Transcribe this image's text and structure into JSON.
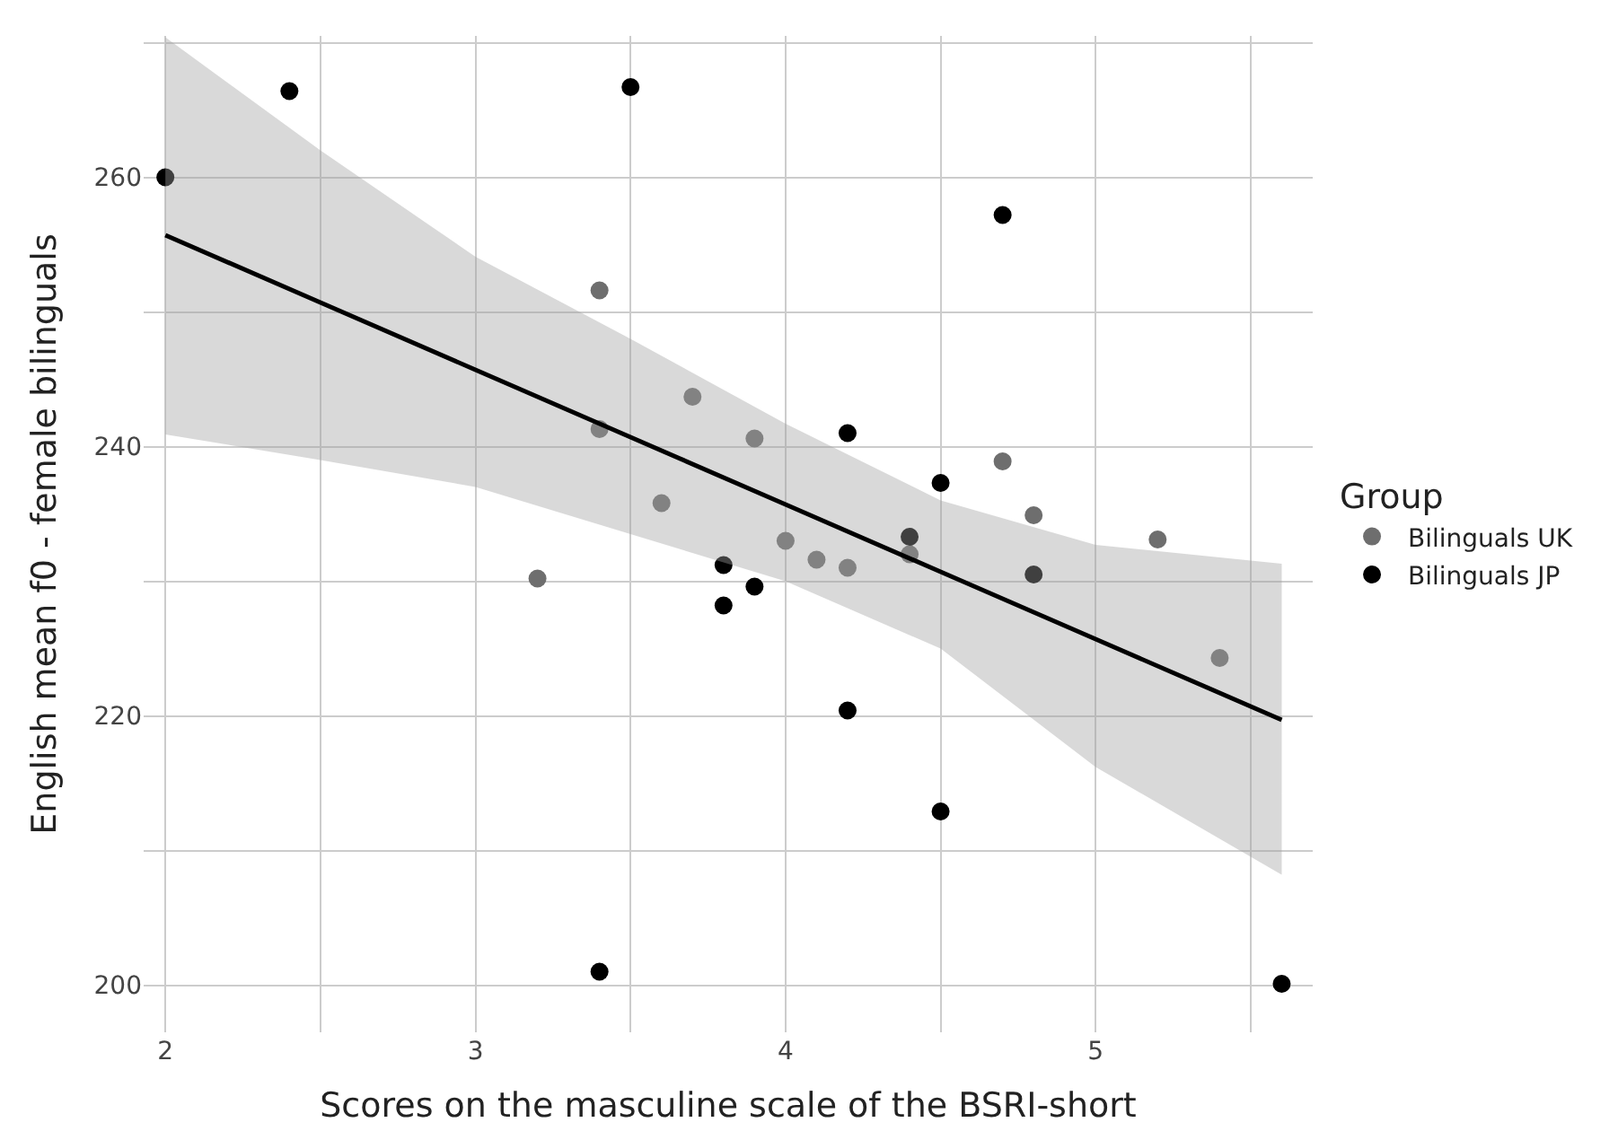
{
  "chart_data": {
    "type": "scatter",
    "xlabel": "Scores on the masculine scale of the BSRI-short",
    "ylabel": "English mean f0 - female bilinguals",
    "legend_title": "Group",
    "legend": "right",
    "grid": true,
    "xlim": [
      1.93,
      5.7
    ],
    "ylim": [
      196.5,
      270.5
    ],
    "xticks": [
      2,
      {
        "value": 2.5,
        "label": null
      },
      3,
      {
        "value": 3.5,
        "label": null
      },
      4,
      {
        "value": 4.5,
        "label": null
      },
      5,
      {
        "value": 5.5,
        "label": null
      }
    ],
    "yticks": [
      {
        "value": 200,
        "label": "200"
      },
      {
        "value": 210,
        "label": null
      },
      {
        "value": 220,
        "label": "220"
      },
      {
        "value": 230,
        "label": null
      },
      {
        "value": 240,
        "label": "240"
      },
      {
        "value": 250,
        "label": null
      },
      {
        "value": 260,
        "label": "260"
      },
      {
        "value": 270,
        "label": null
      }
    ],
    "series": [
      {
        "name": "Bilinguals UK",
        "color": "#6e6e6e",
        "marker": "circle",
        "x": [
          3.4,
          3.4,
          3.2,
          3.7,
          3.6,
          3.9,
          4.0,
          4.1,
          4.2,
          4.4,
          4.7,
          4.8,
          5.2,
          5.4
        ],
        "values": [
          251.6,
          241.3,
          230.2,
          243.7,
          235.8,
          240.6,
          233.0,
          231.6,
          231.0,
          232.0,
          238.9,
          234.9,
          233.1,
          224.3
        ]
      },
      {
        "name": "Bilinguals JP",
        "color": "#000000",
        "marker": "circle",
        "x": [
          2.0,
          2.4,
          3.5,
          3.4,
          3.8,
          3.8,
          3.9,
          4.2,
          4.2,
          4.4,
          4.5,
          4.5,
          4.7,
          4.8,
          5.6
        ],
        "values": [
          260.0,
          266.4,
          266.7,
          201.0,
          231.2,
          228.2,
          229.6,
          241.0,
          220.4,
          233.3,
          237.3,
          212.9,
          257.2,
          230.5,
          200.1
        ]
      },
      {
        "type": "line",
        "marker": "none",
        "color": "#000000",
        "x": [
          2.0,
          2.5,
          3.0,
          3.5,
          4.0,
          4.5,
          5.0,
          5.6
        ],
        "values": [
          255.7,
          250.7,
          245.7,
          240.7,
          235.7,
          230.7,
          225.7,
          219.7
        ],
        "lower": [
          240.9,
          239.0,
          237.0,
          233.5,
          230.0,
          225.0,
          216.2,
          208.2
        ],
        "upper": [
          270.4,
          262.0,
          254.1,
          248.0,
          241.7,
          236.0,
          232.7,
          231.3
        ]
      }
    ]
  }
}
